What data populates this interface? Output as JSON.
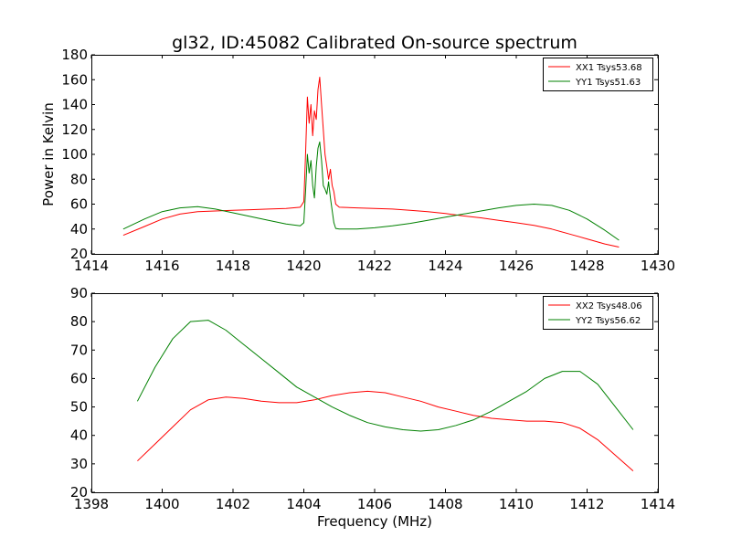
{
  "chart_data": [
    {
      "type": "line",
      "title": "gl32, ID:45082 Calibrated On-source spectrum",
      "xlabel": "",
      "ylabel": "Power in Kelvin",
      "xlim": [
        1414,
        1430
      ],
      "ylim": [
        20,
        180
      ],
      "xticks": [
        1414,
        1416,
        1418,
        1420,
        1422,
        1424,
        1426,
        1428,
        1430
      ],
      "yticks": [
        20,
        40,
        60,
        80,
        100,
        120,
        140,
        160,
        180
      ],
      "legend_position": "top-right",
      "series": [
        {
          "name": "XX1 Tsys53.68",
          "color": "#ff0000",
          "x": [
            1414.9,
            1415.5,
            1416.0,
            1416.5,
            1417.0,
            1417.5,
            1418.0,
            1418.5,
            1419.0,
            1419.5,
            1419.9,
            1420.0,
            1420.05,
            1420.1,
            1420.15,
            1420.2,
            1420.25,
            1420.3,
            1420.35,
            1420.4,
            1420.45,
            1420.5,
            1420.55,
            1420.6,
            1420.65,
            1420.7,
            1420.75,
            1420.8,
            1420.85,
            1420.9,
            1421.0,
            1421.5,
            1422.0,
            1422.5,
            1423.0,
            1423.5,
            1424.0,
            1424.5,
            1425.0,
            1425.5,
            1426.0,
            1426.5,
            1427.0,
            1427.5,
            1428.0,
            1428.5,
            1428.9
          ],
          "y": [
            35,
            42,
            48,
            52,
            54,
            54.5,
            55,
            55.5,
            56,
            56.5,
            57.5,
            62,
            100,
            146,
            125,
            140,
            115,
            135,
            128,
            152,
            162,
            140,
            120,
            100,
            90,
            80,
            88,
            75,
            70,
            60,
            57.5,
            57,
            56.5,
            56,
            55,
            54,
            52.5,
            50.5,
            49,
            47,
            45,
            43,
            40,
            36,
            32,
            28,
            25.5
          ]
        },
        {
          "name": "YY1 Tsys51.63",
          "color": "#008000",
          "x": [
            1414.9,
            1415.5,
            1416.0,
            1416.5,
            1417.0,
            1417.5,
            1418.0,
            1418.5,
            1419.0,
            1419.5,
            1419.9,
            1420.0,
            1420.05,
            1420.1,
            1420.15,
            1420.2,
            1420.25,
            1420.3,
            1420.35,
            1420.4,
            1420.45,
            1420.5,
            1420.55,
            1420.6,
            1420.65,
            1420.7,
            1420.75,
            1420.8,
            1420.85,
            1420.9,
            1421.0,
            1421.5,
            1422.0,
            1422.5,
            1423.0,
            1423.5,
            1424.0,
            1424.5,
            1425.0,
            1425.5,
            1426.0,
            1426.5,
            1427.0,
            1427.5,
            1428.0,
            1428.5,
            1428.9
          ],
          "y": [
            40,
            48,
            54,
            57,
            58,
            56,
            53,
            50,
            47,
            44,
            42.5,
            45,
            70,
            100,
            85,
            95,
            75,
            65,
            90,
            105,
            110,
            95,
            75,
            72,
            68,
            78,
            65,
            55,
            45,
            40.5,
            40,
            40,
            41,
            42.5,
            44.5,
            47,
            49.5,
            52,
            54.5,
            57,
            59,
            60,
            59,
            55,
            48,
            39,
            31
          ]
        }
      ]
    },
    {
      "type": "line",
      "title": "",
      "xlabel": "Frequency (MHz)",
      "ylabel": "",
      "xlim": [
        1398,
        1414
      ],
      "ylim": [
        20,
        90
      ],
      "xticks": [
        1398,
        1400,
        1402,
        1404,
        1406,
        1408,
        1410,
        1412,
        1414
      ],
      "yticks": [
        20,
        30,
        40,
        50,
        60,
        70,
        80,
        90
      ],
      "legend_position": "top-right",
      "series": [
        {
          "name": "XX2 Tsys48.06",
          "color": "#ff0000",
          "x": [
            1399.3,
            1399.8,
            1400.3,
            1400.8,
            1401.3,
            1401.8,
            1402.3,
            1402.8,
            1403.3,
            1403.8,
            1404.3,
            1404.8,
            1405.3,
            1405.8,
            1406.3,
            1406.8,
            1407.3,
            1407.8,
            1408.3,
            1408.8,
            1409.3,
            1409.8,
            1410.3,
            1410.8,
            1411.3,
            1411.8,
            1412.3,
            1412.8,
            1413.3
          ],
          "y": [
            31,
            37,
            43,
            49,
            52.5,
            53.5,
            53,
            52,
            51.5,
            51.5,
            52.5,
            54,
            55,
            55.5,
            55,
            53.5,
            52,
            50,
            48.5,
            47,
            46,
            45.5,
            45,
            45,
            44.5,
            42.5,
            38.5,
            33,
            27.5
          ]
        },
        {
          "name": "YY2 Tsys56.62",
          "color": "#008000",
          "x": [
            1399.3,
            1399.8,
            1400.3,
            1400.8,
            1401.3,
            1401.8,
            1402.3,
            1402.8,
            1403.3,
            1403.8,
            1404.3,
            1404.8,
            1405.3,
            1405.8,
            1406.3,
            1406.8,
            1407.3,
            1407.8,
            1408.3,
            1408.8,
            1409.3,
            1409.8,
            1410.3,
            1410.8,
            1411.3,
            1411.8,
            1412.3,
            1412.8,
            1413.3
          ],
          "y": [
            52,
            64,
            74,
            80,
            80.5,
            77,
            72,
            67,
            62,
            57,
            53.5,
            50,
            47,
            44.5,
            43,
            42,
            41.5,
            42,
            43.5,
            45.5,
            48.5,
            52,
            55.5,
            60,
            62.5,
            62.5,
            58,
            50,
            42
          ]
        }
      ]
    }
  ]
}
